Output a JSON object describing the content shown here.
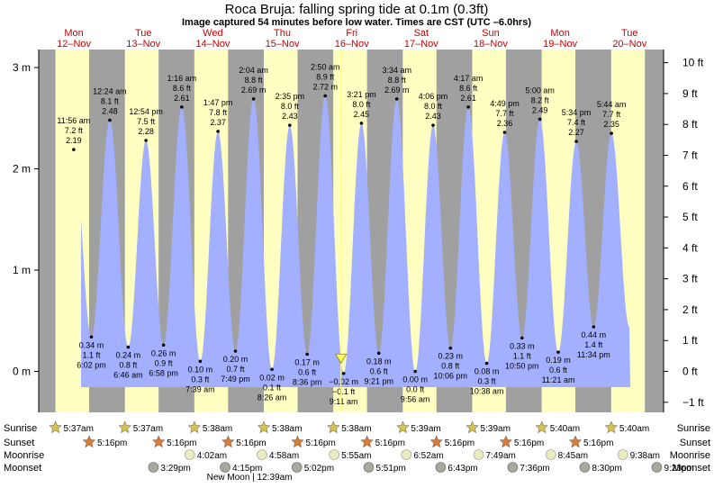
{
  "title": "Roca Bruja: falling  spring tide at 0.1m (0.3ft)",
  "subtitle": "Image captured 54 minutes before low water. Times are CST (UTC –6.0hrs)",
  "days": [
    {
      "name": "Mon",
      "date": "12–Nov"
    },
    {
      "name": "Tue",
      "date": "13–Nov"
    },
    {
      "name": "Wed",
      "date": "14–Nov"
    },
    {
      "name": "Thu",
      "date": "15–Nov"
    },
    {
      "name": "Fri",
      "date": "16–Nov"
    },
    {
      "name": "Sat",
      "date": "17–Nov"
    },
    {
      "name": "Sun",
      "date": "18–Nov"
    },
    {
      "name": "Mon",
      "date": "19–Nov"
    },
    {
      "name": "Tue",
      "date": "20–Nov"
    }
  ],
  "rows": {
    "sunrise": {
      "label": "Sunrise",
      "times": [
        "5:37am",
        "5:37am",
        "5:38am",
        "5:38am",
        "5:38am",
        "5:39am",
        "5:39am",
        "5:40am",
        "5:40am"
      ]
    },
    "sunset": {
      "label": "Sunset",
      "times": [
        "5:16pm",
        "5:16pm",
        "5:16pm",
        "5:16pm",
        "5:16pm",
        "5:16pm",
        "5:16pm",
        "5:16pm"
      ]
    },
    "moonrise": {
      "label": "Moonrise",
      "times": [
        "4:02am",
        "4:58am",
        "5:55am",
        "6:52am",
        "7:49am",
        "8:45am",
        "9:38am"
      ]
    },
    "moonset": {
      "label": "Moonset",
      "times": [
        "3:29pm",
        "4:15pm",
        "5:02pm",
        "5:51pm",
        "6:43pm",
        "7:36pm",
        "8:30pm",
        "9:23pm"
      ]
    },
    "moon_phase": "New Moon | 12:39am"
  },
  "chart_data": {
    "type": "area",
    "title": "Roca Bruja: falling  spring tide at 0.1m (0.3ft)",
    "y_left_unit": "m",
    "y_right_unit": "ft",
    "y_left_ticks": [
      0,
      1,
      2,
      3
    ],
    "y_left_tick_labels": [
      "0 m",
      "1 m",
      "2 m",
      "3 m"
    ],
    "y_right_ticks": [
      -1,
      0,
      1,
      2,
      3,
      4,
      5,
      6,
      7,
      8,
      9,
      10
    ],
    "y_right_tick_labels": [
      "−1 ft",
      "0 ft",
      "1 ft",
      "2 ft",
      "3 ft",
      "4 ft",
      "5 ft",
      "6 ft",
      "7 ft",
      "8 ft",
      "9 ft",
      "10 ft"
    ],
    "ylim_m": [
      -0.36,
      3.13
    ],
    "x_unit": "day index (0 = Mon 12-Nov 00:00)",
    "current_level": {
      "value_m": 0.1,
      "label": "falling",
      "marker": "▼"
    },
    "extremes": [
      {
        "kind": "high",
        "day": 0,
        "time": "11:56 am",
        "m": 2.19,
        "ft": "7.2 ft",
        "m_label": "2.19"
      },
      {
        "kind": "low",
        "day": 0,
        "time": "6:02 pm",
        "m": 0.34,
        "ft": "1.1 ft",
        "m_label": "0.34 m"
      },
      {
        "kind": "high",
        "day": 1,
        "time": "12:24 am",
        "m": 2.48,
        "ft": "8.1 ft",
        "m_label": "2.48"
      },
      {
        "kind": "low",
        "day": 1,
        "time": "6:46 am",
        "m": 0.24,
        "ft": "0.8 ft",
        "m_label": "0.24 m"
      },
      {
        "kind": "high",
        "day": 1,
        "time": "12:54 pm",
        "m": 2.28,
        "ft": "7.5 ft",
        "m_label": "2.28"
      },
      {
        "kind": "low",
        "day": 1,
        "time": "6:58 pm",
        "m": 0.26,
        "ft": "0.9 ft",
        "m_label": "0.26 m"
      },
      {
        "kind": "high",
        "day": 2,
        "time": "1:16 am",
        "m": 2.61,
        "ft": "8.6 ft",
        "m_label": "2.61"
      },
      {
        "kind": "low",
        "day": 2,
        "time": "7:39 am",
        "m": 0.1,
        "ft": "0.3 ft",
        "m_label": "0.10 m"
      },
      {
        "kind": "high",
        "day": 2,
        "time": "1:47 pm",
        "m": 2.37,
        "ft": "7.8 ft",
        "m_label": "2.37"
      },
      {
        "kind": "low",
        "day": 2,
        "time": "7:49 pm",
        "m": 0.2,
        "ft": "0.7 ft",
        "m_label": "0.20 m"
      },
      {
        "kind": "high",
        "day": 3,
        "time": "2:04 am",
        "m": 2.69,
        "ft": "8.8 ft",
        "m_label": "2.69 m"
      },
      {
        "kind": "low",
        "day": 3,
        "time": "8:26 am",
        "m": 0.02,
        "ft": "0.1 ft",
        "m_label": "0.02 m"
      },
      {
        "kind": "high",
        "day": 3,
        "time": "2:35 pm",
        "m": 2.43,
        "ft": "8.0 ft",
        "m_label": "2.43"
      },
      {
        "kind": "low",
        "day": 3,
        "time": "8:36 pm",
        "m": 0.17,
        "ft": "0.6 ft",
        "m_label": "0.17 m"
      },
      {
        "kind": "high",
        "day": 4,
        "time": "2:50 am",
        "m": 2.72,
        "ft": "8.9 ft",
        "m_label": "2.72 m"
      },
      {
        "kind": "low",
        "day": 4,
        "time": "9:11 am",
        "m": -0.02,
        "ft": "−0.1 ft",
        "m_label": "−0.02 m"
      },
      {
        "kind": "high",
        "day": 4,
        "time": "3:21 pm",
        "m": 2.45,
        "ft": "8.0 ft",
        "m_label": "2.45"
      },
      {
        "kind": "low",
        "day": 4,
        "time": "9:21 pm",
        "m": 0.18,
        "ft": "0.6 ft",
        "m_label": "0.18 m"
      },
      {
        "kind": "high",
        "day": 5,
        "time": "3:34 am",
        "m": 2.69,
        "ft": "8.8 ft",
        "m_label": "2.69 m"
      },
      {
        "kind": "low",
        "day": 5,
        "time": "9:56 am",
        "m": 0.0,
        "ft": "0.0 ft",
        "m_label": "0.00 m"
      },
      {
        "kind": "high",
        "day": 5,
        "time": "4:06 pm",
        "m": 2.43,
        "ft": "8.0 ft",
        "m_label": "2.43"
      },
      {
        "kind": "low",
        "day": 5,
        "time": "10:06 pm",
        "m": 0.23,
        "ft": "0.8 ft",
        "m_label": "0.23 m"
      },
      {
        "kind": "high",
        "day": 6,
        "time": "4:17 am",
        "m": 2.61,
        "ft": "8.6 ft",
        "m_label": "2.61"
      },
      {
        "kind": "low",
        "day": 6,
        "time": "10:38 am",
        "m": 0.08,
        "ft": "0.3 ft",
        "m_label": "0.08 m"
      },
      {
        "kind": "high",
        "day": 6,
        "time": "4:49 pm",
        "m": 2.36,
        "ft": "7.7 ft",
        "m_label": "2.36"
      },
      {
        "kind": "low",
        "day": 6,
        "time": "10:50 pm",
        "m": 0.33,
        "ft": "1.1 ft",
        "m_label": "0.33 m"
      },
      {
        "kind": "high",
        "day": 7,
        "time": "5:00 am",
        "m": 2.49,
        "ft": "8.2 ft",
        "m_label": "2.49"
      },
      {
        "kind": "low",
        "day": 7,
        "time": "11:21 am",
        "m": 0.19,
        "ft": "0.6 ft",
        "m_label": "0.19 m"
      },
      {
        "kind": "high",
        "day": 7,
        "time": "5:34 pm",
        "m": 2.27,
        "ft": "7.4 ft",
        "m_label": "2.27"
      },
      {
        "kind": "low",
        "day": 7,
        "time": "11:34 pm",
        "m": 0.44,
        "ft": "1.4 ft",
        "m_label": "0.44 m"
      },
      {
        "kind": "high",
        "day": 8,
        "time": "5:44 am",
        "m": 2.35,
        "ft": "7.7 ft",
        "m_label": "2.35"
      }
    ],
    "colors": {
      "water": "#a3b0ff",
      "day": "#ffffc2",
      "night": "#a0a0a0",
      "day_label": "#cc0000",
      "sun": "#d8c24a",
      "sunset": "#e07a30",
      "moon": "#ebebc0",
      "moonset": "#a8a8a0"
    }
  }
}
